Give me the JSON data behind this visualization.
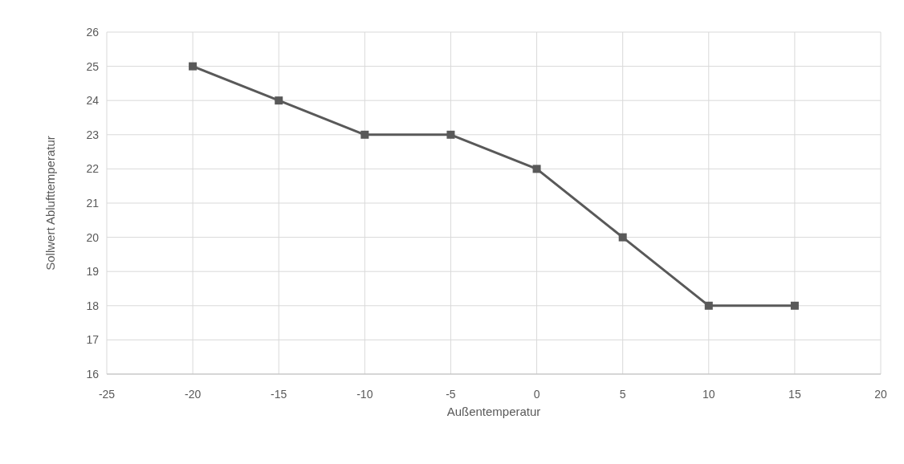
{
  "chart_data": {
    "type": "line",
    "xlabel": "Außentemperatur",
    "ylabel": "Sollwert Ablufttemperatur",
    "x": [
      -20,
      -15,
      -10,
      -5,
      0,
      5,
      10,
      15
    ],
    "series": [
      {
        "color": "#595959",
        "values": [
          25,
          24,
          23,
          23,
          22,
          20,
          18,
          18
        ]
      }
    ],
    "xlim": [
      -25,
      20
    ],
    "xticks": [
      -25,
      -20,
      -15,
      -10,
      -5,
      0,
      5,
      10,
      15,
      20
    ],
    "ylim": [
      16,
      26
    ],
    "yticks": [
      16,
      17,
      18,
      19,
      20,
      21,
      22,
      23,
      24,
      25,
      26
    ],
    "grid": true,
    "marker": "square",
    "line_style": "solid"
  }
}
